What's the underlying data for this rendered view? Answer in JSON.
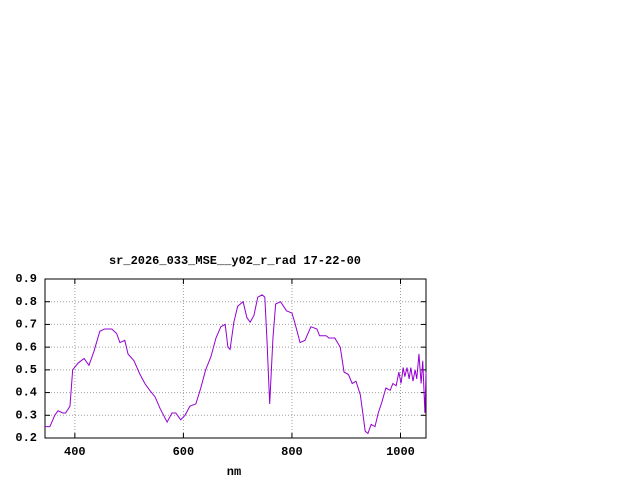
{
  "chart_data": {
    "type": "line",
    "title": "sr_2026_033_MSE__y02_r_rad 17-22-00",
    "x_label": "nm",
    "x": [
      345,
      354,
      363,
      369,
      378,
      383,
      391,
      396,
      406,
      417,
      426,
      435,
      446,
      455,
      468,
      477,
      483,
      492,
      498,
      509,
      520,
      529,
      538,
      548,
      557,
      570,
      579,
      586,
      595,
      603,
      612,
      623,
      632,
      641,
      651,
      660,
      669,
      677,
      682,
      686,
      693,
      700,
      710,
      717,
      723,
      730,
      737,
      745,
      750,
      754,
      759,
      765,
      770,
      779,
      790,
      800,
      805,
      815,
      824,
      835,
      846,
      851,
      863,
      868,
      879,
      889,
      896,
      904,
      911,
      918,
      926,
      935,
      940,
      946,
      953,
      959,
      966,
      973,
      981,
      986,
      992,
      997,
      1001,
      1005,
      1008,
      1012,
      1016,
      1019,
      1023,
      1027,
      1030,
      1034,
      1038,
      1041,
      1045,
      1047
    ],
    "series": [
      {
        "color": "#9400d3",
        "values": [
          0.25,
          0.25,
          0.3,
          0.32,
          0.31,
          0.31,
          0.34,
          0.5,
          0.53,
          0.55,
          0.52,
          0.58,
          0.67,
          0.68,
          0.68,
          0.66,
          0.62,
          0.63,
          0.57,
          0.54,
          0.48,
          0.44,
          0.41,
          0.38,
          0.33,
          0.27,
          0.31,
          0.31,
          0.28,
          0.3,
          0.34,
          0.35,
          0.42,
          0.5,
          0.56,
          0.64,
          0.69,
          0.7,
          0.6,
          0.59,
          0.71,
          0.78,
          0.8,
          0.73,
          0.71,
          0.74,
          0.82,
          0.83,
          0.82,
          0.63,
          0.35,
          0.64,
          0.79,
          0.8,
          0.76,
          0.75,
          0.71,
          0.62,
          0.63,
          0.69,
          0.68,
          0.65,
          0.65,
          0.64,
          0.64,
          0.6,
          0.49,
          0.48,
          0.44,
          0.45,
          0.39,
          0.23,
          0.22,
          0.26,
          0.25,
          0.31,
          0.36,
          0.42,
          0.41,
          0.44,
          0.43,
          0.49,
          0.44,
          0.51,
          0.47,
          0.51,
          0.46,
          0.51,
          0.45,
          0.5,
          0.46,
          0.57,
          0.44,
          0.54,
          0.31,
          0.49
        ]
      }
    ],
    "xlim": [
      345,
      1047
    ],
    "ylim": [
      0.2,
      0.9
    ],
    "xticks": [
      400,
      600,
      800,
      1000
    ],
    "yticks": [
      0.2,
      0.3,
      0.4,
      0.5,
      0.6,
      0.7,
      0.8,
      0.9
    ],
    "grid": true
  }
}
